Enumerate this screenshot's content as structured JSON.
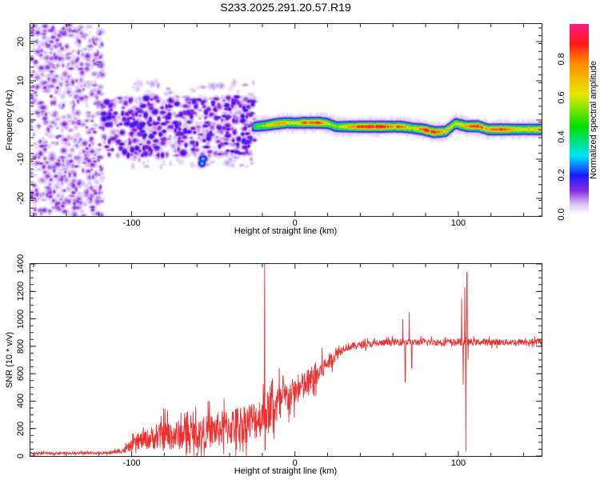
{
  "title": "S233.2025.291.20.57.R19",
  "chart_data": [
    {
      "type": "heatmap",
      "title": "S233.2025.291.20.57.R19",
      "xlabel": "Height of straight line (km)",
      "ylabel": "Frequency (Hz)",
      "xlim": [
        -162,
        151
      ],
      "ylim": [
        -24.5,
        24.5
      ],
      "xticks": [
        {
          "v": -100,
          "label": "-100"
        },
        {
          "v": 0,
          "label": "0"
        },
        {
          "v": 100,
          "label": "100"
        }
      ],
      "yticks": [
        {
          "v": -20,
          "label": "-20"
        },
        {
          "v": -10,
          "label": "-10"
        },
        {
          "v": 0,
          "label": "0"
        },
        {
          "v": 10,
          "label": "10"
        },
        {
          "v": 20,
          "label": "20"
        }
      ],
      "colorbar": {
        "label": "Normalized spectral amplitude",
        "range": [
          0,
          0.98
        ],
        "ticks": [
          {
            "v": 0.0,
            "label": "0.0"
          },
          {
            "v": 0.2,
            "label": "0.2"
          },
          {
            "v": 0.4,
            "label": "0.4"
          },
          {
            "v": 0.6,
            "label": "0.6"
          },
          {
            "v": 0.8,
            "label": "0.8"
          }
        ],
        "stops": [
          [
            0,
            "#ffffff"
          ],
          [
            0.05,
            "#d9c6f5"
          ],
          [
            0.12,
            "#8a2be2"
          ],
          [
            0.2,
            "#1a1aff"
          ],
          [
            0.3,
            "#00e5ff"
          ],
          [
            0.45,
            "#00e000"
          ],
          [
            0.62,
            "#e8e800"
          ],
          [
            0.78,
            "#ff8c00"
          ],
          [
            0.88,
            "#ff1a1a"
          ],
          [
            0.98,
            "#ff1a80"
          ]
        ]
      },
      "ridge": [
        [
          -25,
          -1.6,
          0.45
        ],
        [
          -18,
          -1.3,
          0.6
        ],
        [
          -12,
          -0.9,
          0.75
        ],
        [
          -5,
          -0.6,
          0.7
        ],
        [
          0,
          -0.7,
          0.6
        ],
        [
          5,
          -0.6,
          0.8
        ],
        [
          10,
          -0.6,
          0.75
        ],
        [
          15,
          -0.6,
          0.85
        ],
        [
          20,
          -0.8,
          0.6
        ],
        [
          25,
          -1.6,
          0.55
        ],
        [
          35,
          -1.6,
          0.75
        ],
        [
          45,
          -1.6,
          0.9
        ],
        [
          55,
          -1.6,
          0.85
        ],
        [
          60,
          -1.6,
          0.75
        ],
        [
          65,
          -1.6,
          0.8
        ],
        [
          72,
          -2.0,
          0.6
        ],
        [
          78,
          -2.3,
          0.85
        ],
        [
          85,
          -3.0,
          0.9
        ],
        [
          92,
          -2.8,
          0.7
        ],
        [
          98,
          -0.8,
          0.6
        ],
        [
          105,
          -1.5,
          0.75
        ],
        [
          112,
          -1.5,
          0.85
        ],
        [
          118,
          -2.3,
          0.7
        ],
        [
          125,
          -2.3,
          0.85
        ],
        [
          135,
          -2.3,
          0.65
        ],
        [
          150,
          -2.3,
          0.7
        ]
      ],
      "scatter_regions": [
        {
          "x": [
            -162,
            -118
          ],
          "f": [
            -24.5,
            24.5
          ],
          "amp": [
            0.03,
            0.13
          ],
          "count": 700
        },
        {
          "x": [
            -118,
            -25
          ],
          "f": [
            -9,
            6
          ],
          "amp": [
            0.05,
            0.22
          ],
          "count": 500
        },
        {
          "x": [
            -100,
            -25
          ],
          "f": [
            -12,
            10
          ],
          "amp": [
            0.02,
            0.08
          ],
          "count": 250
        },
        {
          "x": [
            -60,
            -55
          ],
          "f": [
            -11,
            -9
          ],
          "amp": [
            0.3,
            0.35
          ],
          "count": 3
        }
      ]
    },
    {
      "type": "line",
      "xlabel": "Height of straight line (km)",
      "ylabel": "SNR (10 * v/v)",
      "xlim": [
        -162,
        151
      ],
      "ylim": [
        0,
        1400
      ],
      "xticks": [
        {
          "v": -100,
          "label": "-100"
        },
        {
          "v": 0,
          "label": "0"
        },
        {
          "v": 100,
          "label": "100"
        }
      ],
      "yticks": [
        {
          "v": 0,
          "label": "0"
        },
        {
          "v": 200,
          "label": "200"
        },
        {
          "v": 400,
          "label": "400"
        },
        {
          "v": 600,
          "label": "600"
        },
        {
          "v": 800,
          "label": "800"
        },
        {
          "v": 1000,
          "label": "1000"
        },
        {
          "v": 1200,
          "label": "1200"
        },
        {
          "v": 1400,
          "label": "1400"
        }
      ],
      "color": "#f03030",
      "trend": [
        [
          -162,
          20,
          8
        ],
        [
          -115,
          22,
          8
        ],
        [
          -105,
          40,
          20
        ],
        [
          -95,
          110,
          60
        ],
        [
          -80,
          150,
          110
        ],
        [
          -60,
          160,
          110
        ],
        [
          -40,
          210,
          140
        ],
        [
          -25,
          260,
          150
        ],
        [
          -10,
          380,
          150
        ],
        [
          0,
          470,
          100
        ],
        [
          10,
          540,
          120
        ],
        [
          20,
          680,
          60
        ],
        [
          30,
          790,
          30
        ],
        [
          40,
          810,
          25
        ],
        [
          60,
          830,
          25
        ],
        [
          100,
          830,
          25
        ],
        [
          151,
          830,
          22
        ]
      ],
      "spikes": [
        [
          -18.5,
          1400
        ],
        [
          -18.3,
          40
        ],
        [
          66,
          1000
        ],
        [
          67.5,
          540
        ],
        [
          70,
          1050
        ],
        [
          71.5,
          640
        ],
        [
          102,
          1150
        ],
        [
          103,
          520
        ],
        [
          104,
          1230
        ],
        [
          104.6,
          30
        ],
        [
          105.3,
          1340
        ],
        [
          106,
          700
        ]
      ]
    }
  ]
}
